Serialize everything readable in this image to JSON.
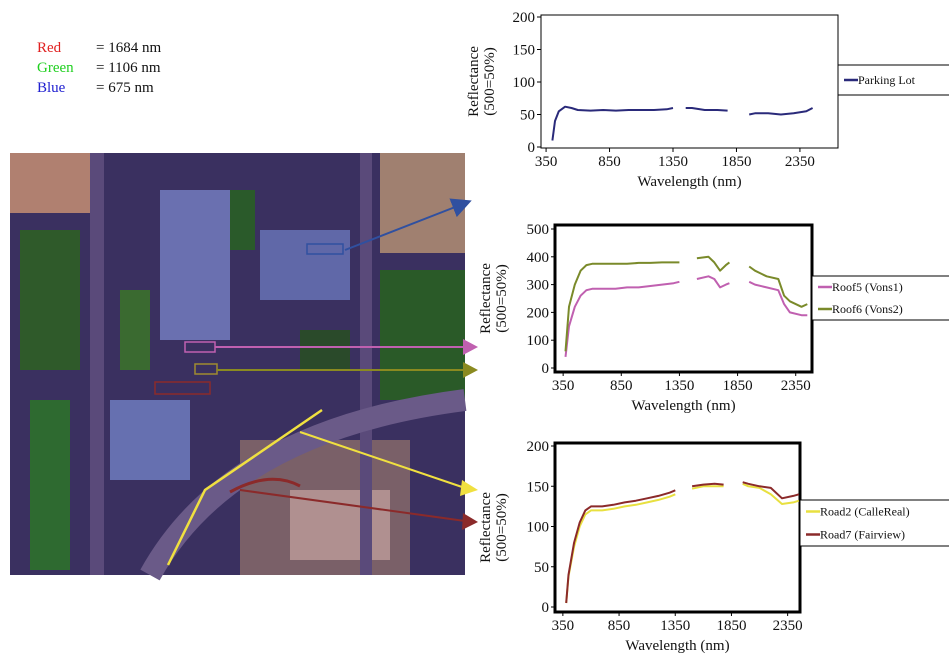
{
  "bands": [
    {
      "name": "Red",
      "color": "#e02020",
      "text": "= 1684 nm"
    },
    {
      "name": "Green",
      "color": "#20d020",
      "text": "= 1106 nm"
    },
    {
      "name": "Blue",
      "color": "#2020d0",
      "text": "= 675 nm"
    }
  ],
  "chart_data": [
    {
      "type": "line",
      "xlabel": "Wavelength (nm)",
      "ylabel": [
        "Reflectance",
        "(500=50%)"
      ],
      "xlim": [
        310,
        2650
      ],
      "xticks": [
        350,
        850,
        1350,
        1850,
        2350
      ],
      "ylim": [
        0,
        200
      ],
      "yticks": [
        0,
        50,
        100,
        150,
        200
      ],
      "x": [
        400,
        420,
        450,
        500,
        550,
        600,
        700,
        800,
        900,
        1000,
        1100,
        1200,
        1300,
        1350,
        1400,
        1450,
        1500,
        1600,
        1700,
        1780,
        1850,
        1950,
        2000,
        2100,
        2200,
        2300,
        2400,
        2450
      ],
      "series": [
        {
          "name": "Parking Lot",
          "color": "#2a2a7a",
          "values": [
            10,
            40,
            55,
            62,
            60,
            57,
            56,
            57,
            56,
            57,
            57,
            57,
            58,
            60,
            null,
            60,
            60,
            57,
            57,
            56,
            null,
            50,
            52,
            52,
            50,
            52,
            55,
            60
          ]
        }
      ]
    },
    {
      "type": "line",
      "xlabel": "Wavelength (nm)",
      "ylabel": [
        "Reflectance",
        "(500=50%)"
      ],
      "xlim": [
        280,
        2490
      ],
      "xticks": [
        350,
        850,
        1350,
        1850,
        2350
      ],
      "ylim": [
        0,
        500
      ],
      "yticks": [
        0,
        100,
        200,
        300,
        400,
        500
      ],
      "x": [
        370,
        400,
        450,
        500,
        550,
        600,
        700,
        800,
        900,
        1000,
        1100,
        1200,
        1300,
        1350,
        1400,
        1500,
        1600,
        1650,
        1700,
        1750,
        1780,
        1850,
        1950,
        2000,
        2100,
        2200,
        2250,
        2300,
        2400,
        2450
      ],
      "series": [
        {
          "name": "Roof5 (Vons1)",
          "color": "#c060b0",
          "values": [
            40,
            150,
            220,
            260,
            280,
            285,
            285,
            285,
            290,
            290,
            295,
            300,
            305,
            310,
            null,
            320,
            330,
            320,
            290,
            300,
            305,
            null,
            310,
            300,
            290,
            280,
            230,
            200,
            190,
            190
          ]
        },
        {
          "name": "Roof6 (Vons2)",
          "color": "#7a8a2a",
          "values": [
            60,
            220,
            300,
            350,
            370,
            375,
            375,
            375,
            375,
            378,
            378,
            380,
            380,
            380,
            null,
            395,
            400,
            380,
            350,
            370,
            380,
            null,
            365,
            350,
            330,
            320,
            260,
            240,
            220,
            230
          ]
        }
      ]
    },
    {
      "type": "line",
      "xlabel": "Wavelength (nm)",
      "ylabel": [
        "Reflectance",
        "(500=50%)"
      ],
      "xlim": [
        280,
        2460
      ],
      "xticks": [
        350,
        850,
        1350,
        1850,
        2350
      ],
      "ylim": [
        0,
        200
      ],
      "yticks": [
        0,
        50,
        100,
        150,
        200
      ],
      "x": [
        380,
        400,
        450,
        500,
        550,
        600,
        700,
        800,
        900,
        1000,
        1100,
        1200,
        1300,
        1350,
        1400,
        1500,
        1600,
        1700,
        1780,
        1850,
        1950,
        2000,
        2100,
        2200,
        2300,
        2400,
        2450
      ],
      "series": [
        {
          "name": "Road2 (CalleReal)",
          "color": "#e8e040",
          "values": [
            5,
            38,
            75,
            100,
            115,
            120,
            120,
            122,
            125,
            127,
            130,
            133,
            137,
            140,
            null,
            147,
            150,
            150,
            150,
            null,
            153,
            150,
            148,
            140,
            128,
            130,
            132
          ]
        },
        {
          "name": "Road7 (Fairview)",
          "color": "#8b2a2a",
          "values": [
            5,
            40,
            80,
            105,
            120,
            125,
            125,
            127,
            130,
            132,
            135,
            138,
            142,
            145,
            null,
            150,
            152,
            153,
            152,
            null,
            155,
            153,
            150,
            148,
            135,
            138,
            140
          ]
        }
      ]
    }
  ]
}
